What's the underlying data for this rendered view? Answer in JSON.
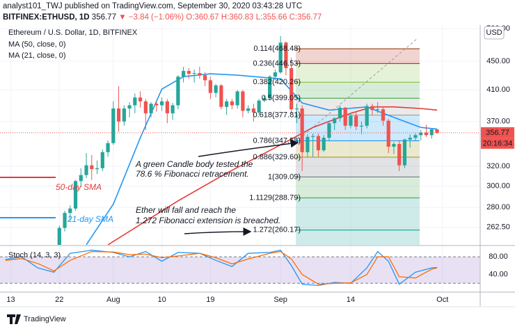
{
  "header": {
    "author": "analyst101_TWJ published on TradingView.com, September 30, 2020 03:43:28 UTC",
    "symbol": "BITFINEX:ETHUSD, 1D",
    "last": "356.77",
    "change": "▼ −3.84 (−1.06%)",
    "ohlc": "O:360.67 H:360.83 L:355.66 C:356.77"
  },
  "footer": {
    "brand": "TradingView"
  },
  "chart_data": [
    {
      "type": "candlestick",
      "title": "Ethereum / U.S. Dollar, 1D, BITFINEX",
      "x": [
        "2020-07-22",
        "2020-07-23",
        "2020-07-24",
        "2020-07-25",
        "2020-07-26",
        "2020-07-27",
        "2020-07-28",
        "2020-07-29",
        "2020-07-30",
        "2020-07-31",
        "2020-08-01",
        "2020-08-02",
        "2020-08-03",
        "2020-08-04",
        "2020-08-05",
        "2020-08-06",
        "2020-08-07",
        "2020-08-08",
        "2020-08-09",
        "2020-08-10",
        "2020-08-11",
        "2020-08-12",
        "2020-08-13",
        "2020-08-14",
        "2020-08-15",
        "2020-08-16",
        "2020-08-17",
        "2020-08-18",
        "2020-08-19",
        "2020-08-20",
        "2020-08-21",
        "2020-08-22",
        "2020-08-23",
        "2020-08-24",
        "2020-08-25",
        "2020-08-26",
        "2020-08-27",
        "2020-08-28",
        "2020-08-29",
        "2020-08-30",
        "2020-08-31",
        "2020-09-01",
        "2020-09-02",
        "2020-09-03",
        "2020-09-04",
        "2020-09-05",
        "2020-09-06",
        "2020-09-07",
        "2020-09-08",
        "2020-09-09",
        "2020-09-10",
        "2020-09-11",
        "2020-09-12",
        "2020-09-13",
        "2020-09-14",
        "2020-09-15",
        "2020-09-16",
        "2020-09-17",
        "2020-09-18",
        "2020-09-19",
        "2020-09-20",
        "2020-09-21",
        "2020-09-22",
        "2020-09-23",
        "2020-09-24",
        "2020-09-25",
        "2020-09-26",
        "2020-09-27",
        "2020-09-28",
        "2020-09-29",
        "2020-09-30"
      ],
      "ohlc": [
        [
          245,
          264,
          240,
          262
        ],
        [
          262,
          277,
          259,
          275
        ],
        [
          275,
          282,
          268,
          279
        ],
        [
          279,
          306,
          277,
          305
        ],
        [
          305,
          318,
          299,
          311
        ],
        [
          311,
          334,
          308,
          321
        ],
        [
          321,
          332,
          306,
          317
        ],
        [
          317,
          326,
          312,
          318
        ],
        [
          318,
          338,
          315,
          335
        ],
        [
          335,
          348,
          330,
          345
        ],
        [
          345,
          395,
          343,
          386
        ],
        [
          386,
          415,
          358,
          370
        ],
        [
          370,
          390,
          365,
          386
        ],
        [
          386,
          394,
          375,
          390
        ],
        [
          390,
          405,
          380,
          400
        ],
        [
          400,
          408,
          387,
          395
        ],
        [
          395,
          398,
          360,
          380
        ],
        [
          380,
          394,
          375,
          392
        ],
        [
          392,
          395,
          382,
          390
        ],
        [
          390,
          400,
          383,
          395
        ],
        [
          395,
          398,
          368,
          380
        ],
        [
          380,
          393,
          372,
          390
        ],
        [
          390,
          430,
          385,
          428
        ],
        [
          428,
          442,
          420,
          436
        ],
        [
          436,
          440,
          425,
          432
        ],
        [
          432,
          438,
          420,
          433
        ],
        [
          433,
          442,
          425,
          430
        ],
        [
          430,
          434,
          415,
          423
        ],
        [
          423,
          428,
          398,
          406
        ],
        [
          406,
          418,
          400,
          416
        ],
        [
          416,
          418,
          385,
          388
        ],
        [
          388,
          398,
          378,
          395
        ],
        [
          395,
          398,
          385,
          390
        ],
        [
          390,
          410,
          386,
          408
        ],
        [
          408,
          410,
          375,
          383
        ],
        [
          383,
          390,
          380,
          386
        ],
        [
          386,
          392,
          370,
          381
        ],
        [
          381,
          398,
          378,
          396
        ],
        [
          396,
          402,
          394,
          399
        ],
        [
          399,
          430,
          397,
          428
        ],
        [
          428,
          438,
          423,
          434
        ],
        [
          434,
          488,
          432,
          478
        ],
        [
          478,
          480,
          430,
          440
        ],
        [
          440,
          455,
          380,
          385
        ],
        [
          385,
          392,
          368,
          386
        ],
        [
          386,
          390,
          315,
          335
        ],
        [
          335,
          355,
          330,
          352
        ],
        [
          352,
          356,
          330,
          353
        ],
        [
          353,
          356,
          330,
          337
        ],
        [
          337,
          354,
          335,
          351
        ],
        [
          351,
          370,
          347,
          368
        ],
        [
          368,
          375,
          360,
          374
        ],
        [
          374,
          390,
          370,
          387
        ],
        [
          387,
          388,
          360,
          365
        ],
        [
          365,
          380,
          362,
          377
        ],
        [
          377,
          382,
          360,
          364
        ],
        [
          364,
          370,
          355,
          365
        ],
        [
          365,
          392,
          362,
          389
        ],
        [
          389,
          392,
          378,
          384
        ],
        [
          384,
          394,
          380,
          385
        ],
        [
          385,
          387,
          365,
          371
        ],
        [
          371,
          373,
          334,
          341
        ],
        [
          341,
          346,
          333,
          344
        ],
        [
          344,
          348,
          315,
          321
        ],
        [
          321,
          350,
          318,
          349
        ],
        [
          349,
          355,
          340,
          351
        ],
        [
          351,
          356,
          348,
          354
        ],
        [
          354,
          360,
          348,
          357
        ],
        [
          357,
          366,
          352,
          354
        ],
        [
          354,
          362,
          350,
          360.67
        ],
        [
          360.67,
          360.83,
          355.66,
          356.77
        ]
      ],
      "up_color": "#26a69a",
      "down_color": "#ef5350",
      "series": [
        {
          "name": "MA (50, close, 0)",
          "color": "#e53935",
          "x": [
            "2020-07-31",
            "2020-08-13",
            "2020-08-22",
            "2020-09-01",
            "2020-09-07",
            "2020-09-14",
            "2020-09-18",
            "2020-09-22",
            "2020-09-27",
            "2020-09-30"
          ],
          "values": [
            248,
            286,
            313,
            343,
            363,
            380,
            388,
            388,
            386,
            384
          ]
        },
        {
          "name": "MA (21, close, 0)",
          "color": "#2196f3",
          "x": [
            "2020-07-27",
            "2020-08-01",
            "2020-08-06",
            "2020-08-10",
            "2020-08-14",
            "2020-08-19",
            "2020-08-24",
            "2020-09-01",
            "2020-09-05",
            "2020-09-10",
            "2020-09-17",
            "2020-09-22",
            "2020-09-27",
            "2020-09-30"
          ],
          "values": [
            248,
            283,
            351,
            411,
            428,
            432,
            430,
            425,
            393,
            384,
            388,
            375,
            363,
            361
          ]
        }
      ],
      "ylim": [
        248,
        506
      ],
      "log_scale": true,
      "yticks": [
        {
          "value": 500,
          "label": "500.00"
        },
        {
          "value": 450,
          "label": "450.00"
        },
        {
          "value": 410,
          "label": "410.00"
        },
        {
          "value": 370,
          "label": "370.00"
        },
        {
          "value": 320,
          "label": "320.00"
        },
        {
          "value": 300,
          "label": "300.00"
        },
        {
          "value": 280,
          "label": "280.00"
        },
        {
          "value": 262.5,
          "label": "262.50"
        }
      ],
      "xlim": [
        "2020-07-11",
        "2020-10-08"
      ],
      "xticks": [
        {
          "value": "2020-07-13",
          "label": "13"
        },
        {
          "value": "2020-07-22",
          "label": "22"
        },
        {
          "value": "2020-08-01",
          "label": "Aug"
        },
        {
          "value": "2020-08-10",
          "label": "10"
        },
        {
          "value": "2020-08-19",
          "label": "19"
        },
        {
          "value": "2020-09-01",
          "label": "Sep"
        },
        {
          "value": "2020-09-14",
          "label": "14"
        },
        {
          "value": "2020-10-01",
          "label": "Oct"
        }
      ],
      "grid": true,
      "unit": "USD",
      "last_price": 356.77,
      "countdown": "20:16:34",
      "fibonacci": [
        {
          "value": 468.48,
          "label": "0.114(468.48)",
          "color": "#a0522d"
        },
        {
          "value": 446.53,
          "label": "0.236(446.53)",
          "color": "#c0392b"
        },
        {
          "value": 420.26,
          "label": "0.382(420.26)",
          "color": "#8bc34a"
        },
        {
          "value": 399.05,
          "label": "0.5(399.05)",
          "color": "#4caf50"
        },
        {
          "value": 377.81,
          "label": "0.618(377.81)",
          "color": "#9e9e9e"
        },
        {
          "value": 347.58,
          "label": "0.786(347.58)",
          "color": "#2196f3"
        },
        {
          "value": 329.6,
          "label": "0.886(329.60)",
          "color": "#9e9d24"
        },
        {
          "value": 309.09,
          "label": "1(309.09)",
          "color": "#787b86"
        },
        {
          "value": 288.79,
          "label": "1.1129(288.79)",
          "color": "#4caf50"
        },
        {
          "value": 260.17,
          "label": "1.272(260.17)",
          "color": "#26a69a"
        }
      ],
      "annotations": [
        "A green Candle body tested the",
        "78.6 % Fibonacci retracement.",
        "Ether will fall and reach the",
        "1.272 Fibonacci extension is breached.",
        "50-day SMA",
        "21-day SMA"
      ]
    },
    {
      "type": "line",
      "title": "Stoch (14, 3, 3)",
      "x": [
        "2020-07-12",
        "2020-07-15",
        "2020-07-18",
        "2020-07-21",
        "2020-07-24",
        "2020-07-28",
        "2020-08-01",
        "2020-08-04",
        "2020-08-07",
        "2020-08-10",
        "2020-08-13",
        "2020-08-17",
        "2020-08-20",
        "2020-08-23",
        "2020-08-26",
        "2020-08-30",
        "2020-09-01",
        "2020-09-03",
        "2020-09-05",
        "2020-09-08",
        "2020-09-11",
        "2020-09-14",
        "2020-09-17",
        "2020-09-19",
        "2020-09-21",
        "2020-09-23",
        "2020-09-26",
        "2020-09-29",
        "2020-09-30"
      ],
      "series": [
        {
          "color": "#2196f3",
          "values": [
            74,
            80,
            55,
            45,
            88,
            95,
            90,
            80,
            92,
            70,
            90,
            88,
            72,
            58,
            88,
            90,
            95,
            60,
            18,
            15,
            22,
            20,
            55,
            92,
            70,
            18,
            45,
            55,
            56
          ]
        },
        {
          "color": "#ff6d00",
          "values": [
            72,
            76,
            65,
            48,
            72,
            92,
            91,
            85,
            86,
            78,
            82,
            88,
            78,
            64,
            75,
            88,
            92,
            75,
            40,
            18,
            20,
            21,
            40,
            80,
            80,
            35,
            32,
            52,
            55
          ]
        }
      ],
      "ylim": [
        0,
        104
      ],
      "yticks": [
        {
          "value": 80,
          "label": "80.00"
        },
        {
          "value": 40,
          "label": "40.00"
        }
      ],
      "band": [
        20,
        80
      ],
      "band_color": "#7e57c2"
    }
  ]
}
